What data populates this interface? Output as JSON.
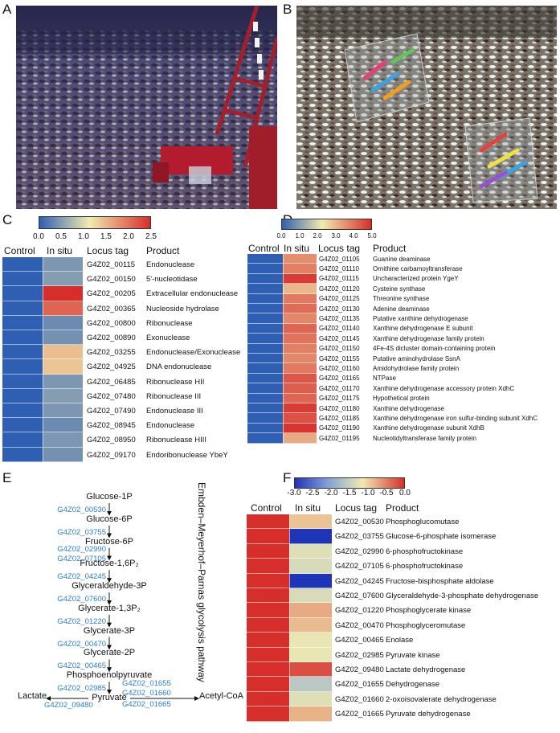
{
  "panels": {
    "A": "A",
    "B": "B",
    "C": "C",
    "D": "D",
    "E": "E",
    "F": "F"
  },
  "colors": {
    "low": "#2f5fb3",
    "mid": "#f1ebb0",
    "high": "#d62e2a",
    "gene_blue": "#2a7ec6"
  },
  "panel_C": {
    "colorbar": {
      "ticks": [
        "0.0",
        "0.5",
        "1.0",
        "1.5",
        "2.0",
        "2.5"
      ],
      "min": 0,
      "max": 2.5
    },
    "headers": {
      "control": "Control",
      "insitu": "In situ",
      "locus": "Locus tag",
      "product": "Product"
    },
    "rows": [
      {
        "locus": "G4Z02_00115",
        "product": "Endonuclease",
        "control": 0,
        "insitu": 0.45
      },
      {
        "locus": "G4Z02_00150",
        "product": "5'-nucleotidase",
        "control": 0,
        "insitu": 0.5
      },
      {
        "locus": "G4Z02_00205",
        "product": "Extracellular endonuclease",
        "control": 0,
        "insitu": 2.5
      },
      {
        "locus": "G4Z02_00365",
        "product": "Nucleoside hydrolase",
        "control": 0,
        "insitu": 2.1
      },
      {
        "locus": "G4Z02_00800",
        "product": "Ribonuclease",
        "control": 0,
        "insitu": 0.35
      },
      {
        "locus": "G4Z02_00890",
        "product": "Exonuclease",
        "control": 0,
        "insitu": 0.4
      },
      {
        "locus": "G4Z02_03255",
        "product": "Endonuclease/Exonuclease",
        "control": 0,
        "insitu": 1.45
      },
      {
        "locus": "G4Z02_04925",
        "product": "DNA endonuclease",
        "control": 0,
        "insitu": 1.4
      },
      {
        "locus": "G4Z02_06485",
        "product": "Ribonuclease HII",
        "control": 0,
        "insitu": 0.45
      },
      {
        "locus": "G4Z02_07480",
        "product": "Ribonuclease III",
        "control": 0,
        "insitu": 0.5
      },
      {
        "locus": "G4Z02_07490",
        "product": "Endonuclease III",
        "control": 0,
        "insitu": 0.45
      },
      {
        "locus": "G4Z02_08945",
        "product": "Endonuclease",
        "control": 0,
        "insitu": 0.35
      },
      {
        "locus": "G4Z02_08950",
        "product": "Ribonuclease HIII",
        "control": 0,
        "insitu": 0.45
      },
      {
        "locus": "G4Z02_09170",
        "product": "Endoribonuclease YbeY",
        "control": 0,
        "insitu": 0.4
      }
    ]
  },
  "panel_D": {
    "colorbar": {
      "ticks": [
        "0.0",
        "1.0",
        "2.0",
        "3.0",
        "4.0",
        "5.0"
      ],
      "min": 0,
      "max": 5
    },
    "headers": {
      "control": "Control",
      "insitu": "In situ",
      "locus": "Locus tag",
      "product": "Product"
    },
    "rows": [
      {
        "locus": "G4Z02_01105",
        "product": "Guanine deaminase",
        "control": 0,
        "insitu": 3.6
      },
      {
        "locus": "G4Z02_01110",
        "product": "Ornithine carbamoyltransferase",
        "control": 0,
        "insitu": 3.8
      },
      {
        "locus": "G4Z02_01115",
        "product": "Uncharacterized protein YgeY",
        "control": 0,
        "insitu": 4.8
      },
      {
        "locus": "G4Z02_01120",
        "product": "Cysteine synthase",
        "control": 0,
        "insitu": 3.0
      },
      {
        "locus": "G4Z02_01125",
        "product": "Threonine synthase",
        "control": 0,
        "insitu": 3.9
      },
      {
        "locus": "G4Z02_01130",
        "product": "Adenine deaminase",
        "control": 0,
        "insitu": 4.1
      },
      {
        "locus": "G4Z02_01135",
        "product": "Putative xanthine dehydrogenase",
        "control": 0,
        "insitu": 3.7
      },
      {
        "locus": "G4Z02_01140",
        "product": "Xanthine dehydrogenase E subunit",
        "control": 0,
        "insitu": 4.2
      },
      {
        "locus": "G4Z02_01145",
        "product": "Xanthine dehydrogenase family protein",
        "control": 0,
        "insitu": 4.0
      },
      {
        "locus": "G4Z02_01150",
        "product": "4Fe-4S dicluster domain-containing protein",
        "control": 0,
        "insitu": 3.8
      },
      {
        "locus": "G4Z02_01155",
        "product": "Putative aminohydrolase SsnA",
        "control": 0,
        "insitu": 3.7
      },
      {
        "locus": "G4Z02_01160",
        "product": "Amidohydrolase family protein",
        "control": 0,
        "insitu": 3.9
      },
      {
        "locus": "G4Z02_01165",
        "product": "NTPase",
        "control": 0,
        "insitu": 4.4
      },
      {
        "locus": "G4Z02_01170",
        "product": "Xanthine dehydrogenase accessory protein XdhC",
        "control": 0,
        "insitu": 4.3
      },
      {
        "locus": "G4Z02_01175",
        "product": "Hypothetical protein",
        "control": 0,
        "insitu": 4.2
      },
      {
        "locus": "G4Z02_01180",
        "product": "Xanthine dehydrogenase",
        "control": 0,
        "insitu": 4.8
      },
      {
        "locus": "G4Z02_01185",
        "product": "Xanthine dehydrogenase iron sulfur-binding subunit XdhC",
        "control": 0,
        "insitu": 4.5
      },
      {
        "locus": "G4Z02_01190",
        "product": "Xanthine dehydrogenase subunit XdhB",
        "control": 0,
        "insitu": 4.9
      },
      {
        "locus": "G4Z02_01195",
        "product": "Nucleotidyltransferase family protein",
        "control": 0,
        "insitu": 3.2
      }
    ]
  },
  "panel_E": {
    "pathway_label": "Embden–Meyerhof–Parnas glycolysis pathway",
    "metabolites": [
      "Glucose-1P",
      "Glucose-6P",
      "Fructose-6P",
      "Fructose-1,6P₂",
      "Glyceraldehyde-3P",
      "Glycerate-1,3P₂",
      "Glycerate-3P",
      "Glycerate-2P",
      "Phosphoenolpyruvate",
      "Pyruvate"
    ],
    "genes": [
      [
        "G4Z02_00530"
      ],
      [
        "G4Z02_03755"
      ],
      [
        "G4Z02_02990",
        "G4Z02_07105"
      ],
      [
        "G4Z02_04245"
      ],
      [
        "G4Z02_07600"
      ],
      [
        "G4Z02_01220"
      ],
      [
        "G4Z02_00470"
      ],
      [
        "G4Z02_00465"
      ],
      [
        "G4Z02_02985"
      ]
    ],
    "lactate": "Lactate",
    "lactate_gene": "G4Z02_09480",
    "acetyl": "Acetyl-CoA",
    "acetyl_genes": [
      "G4Z02_01655",
      "G4Z02_01660",
      "G4Z02_01665"
    ]
  },
  "panel_F": {
    "colorbar": {
      "ticks": [
        "-3.0",
        "-2.5",
        "-2.0",
        "-1.5",
        "-1.0",
        "-0.5",
        "0.0"
      ],
      "min": -3,
      "max": 0
    },
    "headers": {
      "control": "Control",
      "insitu": "In situ",
      "locus": "Locus tag",
      "product": "Product"
    },
    "rows": [
      {
        "locus": "G4Z02_00530",
        "product": "Phosphoglucomutase",
        "control": 0,
        "insitu": -0.9
      },
      {
        "locus": "G4Z02_03755",
        "product": "Glucose-6-phosphate isomerase",
        "control": 0,
        "insitu": -3.0
      },
      {
        "locus": "G4Z02_02990",
        "product": "6-phosphofructokinase",
        "control": 0,
        "insitu": -1.3
      },
      {
        "locus": "G4Z02_07105",
        "product": "6-phosphofructokinase",
        "control": 0,
        "insitu": -1.35
      },
      {
        "locus": "G4Z02_04245",
        "product": "Fructose-bisphosphate aldolase",
        "control": 0,
        "insitu": -3.0
      },
      {
        "locus": "G4Z02_07600",
        "product": "Glyceraldehyde-3-phosphate dehydrogenase",
        "control": 0,
        "insitu": -1.35
      },
      {
        "locus": "G4Z02_01220",
        "product": "Phosphoglycerate kinase",
        "control": 0,
        "insitu": -0.75
      },
      {
        "locus": "G4Z02_00470",
        "product": "Phosphoglyceromutase",
        "control": 0,
        "insitu": -0.85
      },
      {
        "locus": "G4Z02_00465",
        "product": "Enolase",
        "control": 0,
        "insitu": -1.2
      },
      {
        "locus": "G4Z02_02985",
        "product": "Pyruvate kinase",
        "control": 0,
        "insitu": -1.2
      },
      {
        "locus": "G4Z02_09480",
        "product": "Lactate dehydrogenase",
        "control": 0,
        "insitu": -0.2
      },
      {
        "locus": "G4Z02_01655",
        "product": "Dehydrogenase",
        "control": 0,
        "insitu": -1.6
      },
      {
        "locus": "G4Z02_01660",
        "product": "2-oxoisovalerate dehydrogenase",
        "control": 0,
        "insitu": -1.3
      },
      {
        "locus": "G4Z02_01665",
        "product": "Pyruvate dehydrogenase",
        "control": 0,
        "insitu": -0.8
      }
    ]
  }
}
